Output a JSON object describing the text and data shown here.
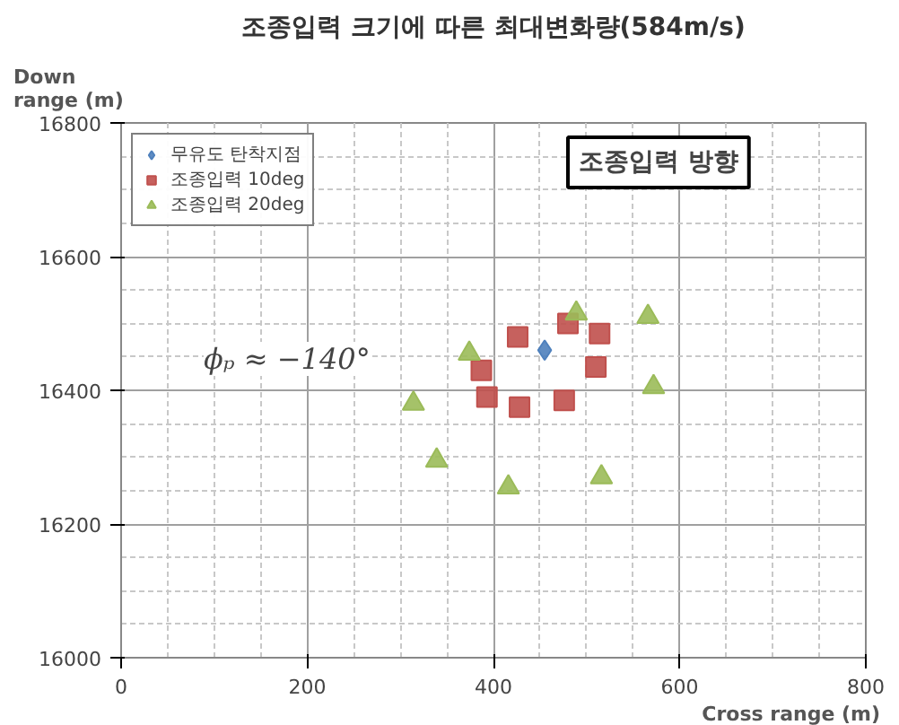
{
  "chart_data": {
    "type": "scatter",
    "title": "조종입력 크기에 따른 최대변화량(584m/s)",
    "xlabel": "Cross range (m)",
    "ylabel": "Down range (m)",
    "xlim": [
      0,
      800
    ],
    "xticks": [
      0,
      200,
      400,
      600,
      800
    ],
    "ylim": [
      16000,
      16800
    ],
    "yticks": [
      16000,
      16200,
      16400,
      16600,
      16800
    ],
    "grid": true,
    "legend": "top left",
    "annotations": [
      "조종입력 방향",
      "ϕₚ ≈ −140°"
    ],
    "series": [
      {
        "name": "무유도 탄착지점",
        "color": "#4f81bd",
        "marker": "diamond",
        "x": [
          455
        ],
        "values": [
          16460
        ]
      },
      {
        "name": "조종입력 10deg",
        "color": "#c0504d",
        "marker": "square",
        "x": [
          426,
          480,
          514,
          387,
          510,
          393,
          428,
          476
        ],
        "values": [
          16480,
          16500,
          16485,
          16430,
          16435,
          16390,
          16375,
          16385
        ]
      },
      {
        "name": "조종입력 20deg",
        "color": "#9bbb59",
        "marker": "triangle",
        "x": [
          489,
          566,
          374,
          572,
          314,
          339,
          416,
          516
        ],
        "values": [
          16515,
          16510,
          16455,
          16405,
          16380,
          16295,
          16255,
          16270
        ]
      }
    ]
  }
}
